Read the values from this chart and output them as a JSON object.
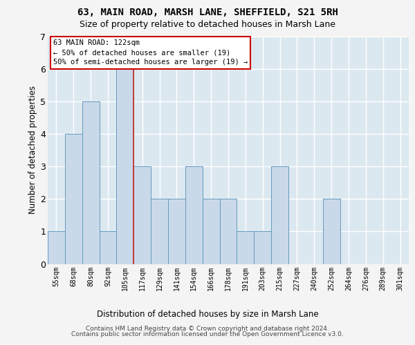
{
  "title": "63, MAIN ROAD, MARSH LANE, SHEFFIELD, S21 5RH",
  "subtitle": "Size of property relative to detached houses in Marsh Lane",
  "xlabel": "Distribution of detached houses by size in Marsh Lane",
  "ylabel": "Number of detached properties",
  "categories": [
    "55sqm",
    "68sqm",
    "80sqm",
    "92sqm",
    "105sqm",
    "117sqm",
    "129sqm",
    "141sqm",
    "154sqm",
    "166sqm",
    "178sqm",
    "191sqm",
    "203sqm",
    "215sqm",
    "227sqm",
    "240sqm",
    "252sqm",
    "264sqm",
    "276sqm",
    "289sqm",
    "301sqm"
  ],
  "values": [
    1,
    4,
    5,
    1,
    6,
    3,
    2,
    2,
    3,
    2,
    2,
    1,
    1,
    3,
    0,
    0,
    2,
    0,
    0,
    0,
    0
  ],
  "bar_color": "#c9d9ea",
  "bar_edge_color": "#6699bb",
  "redline_x": 5.0,
  "redline_color": "#cc2222",
  "annotation_text": "63 MAIN ROAD: 122sqm\n← 50% of detached houses are smaller (19)\n50% of semi-detached houses are larger (19) →",
  "annotation_box_facecolor": "#ffffff",
  "annotation_box_edgecolor": "#cc0000",
  "ylim": [
    0,
    7
  ],
  "yticks": [
    0,
    1,
    2,
    3,
    4,
    5,
    6,
    7
  ],
  "fig_facecolor": "#f4f4f4",
  "axes_facecolor": "#dce8f0",
  "grid_color": "#ffffff",
  "footer_line1": "Contains HM Land Registry data © Crown copyright and database right 2024.",
  "footer_line2": "Contains public sector information licensed under the Open Government Licence v3.0.",
  "title_fontsize": 10,
  "subtitle_fontsize": 9,
  "xlabel_fontsize": 8.5,
  "ylabel_fontsize": 8.5,
  "tick_fontsize": 7,
  "annotation_fontsize": 7.5,
  "footer_fontsize": 6.5
}
